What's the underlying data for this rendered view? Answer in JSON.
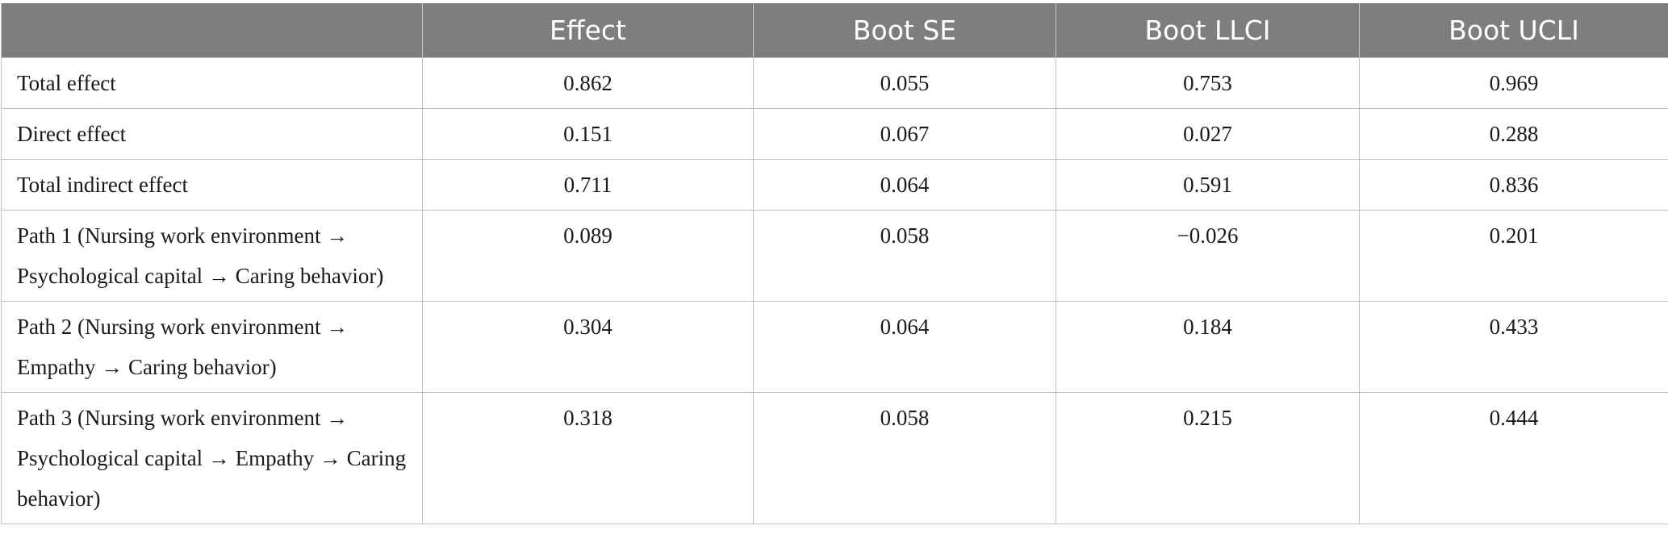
{
  "table": {
    "headers": [
      "",
      "Effect",
      "Boot SE",
      "Boot LLCI",
      "Boot UCLI"
    ],
    "rows": [
      {
        "label": "Total effect",
        "effect": "0.862",
        "boot_se": "0.055",
        "boot_llci": "0.753",
        "boot_ucli": "0.969"
      },
      {
        "label": "Direct effect",
        "effect": "0.151",
        "boot_se": "0.067",
        "boot_llci": "0.027",
        "boot_ucli": "0.288"
      },
      {
        "label": "Total indirect effect",
        "effect": "0.711",
        "boot_se": "0.064",
        "boot_llci": "0.591",
        "boot_ucli": "0.836"
      },
      {
        "label": "Path 1 (Nursing work environment → Psychological capital → Caring behavior)",
        "effect": "0.089",
        "boot_se": "0.058",
        "boot_llci": "−0.026",
        "boot_ucli": "0.201"
      },
      {
        "label": "Path 2 (Nursing work environment → Empathy → Caring behavior)",
        "effect": "0.304",
        "boot_se": "0.064",
        "boot_llci": "0.184",
        "boot_ucli": "0.433"
      },
      {
        "label": "Path 3 (Nursing work environment → Psychological capital → Empathy → Caring behavior)",
        "effect": "0.318",
        "boot_se": "0.058",
        "boot_llci": "0.215",
        "boot_ucli": "0.444"
      }
    ]
  }
}
